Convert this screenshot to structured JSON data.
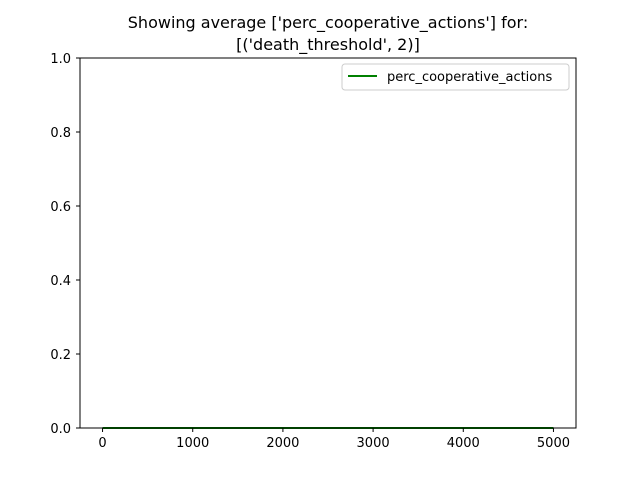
{
  "chart_data": {
    "type": "line",
    "title_lines": [
      "Showing average ['perc_cooperative_actions'] for:",
      "[('death_threshold', 2)]"
    ],
    "xlabel": "",
    "ylabel": "",
    "xlim": [
      -250,
      5250
    ],
    "ylim": [
      0.0,
      1.0
    ],
    "x_ticks": [
      0,
      1000,
      2000,
      3000,
      4000,
      5000
    ],
    "y_ticks": [
      0.0,
      0.2,
      0.4,
      0.6,
      0.8,
      1.0
    ],
    "x_tick_labels": [
      "0",
      "1000",
      "2000",
      "3000",
      "4000",
      "5000"
    ],
    "y_tick_labels": [
      "0.0",
      "0.2",
      "0.4",
      "0.6",
      "0.8",
      "1.0"
    ],
    "grid": false,
    "legend_position": "upper-right",
    "series": [
      {
        "name": "perc_cooperative_actions",
        "color": "#008000",
        "x": [
          0,
          1000,
          2000,
          3000,
          4000,
          5000
        ],
        "y": [
          0,
          0,
          0,
          0,
          0,
          0
        ]
      }
    ]
  }
}
